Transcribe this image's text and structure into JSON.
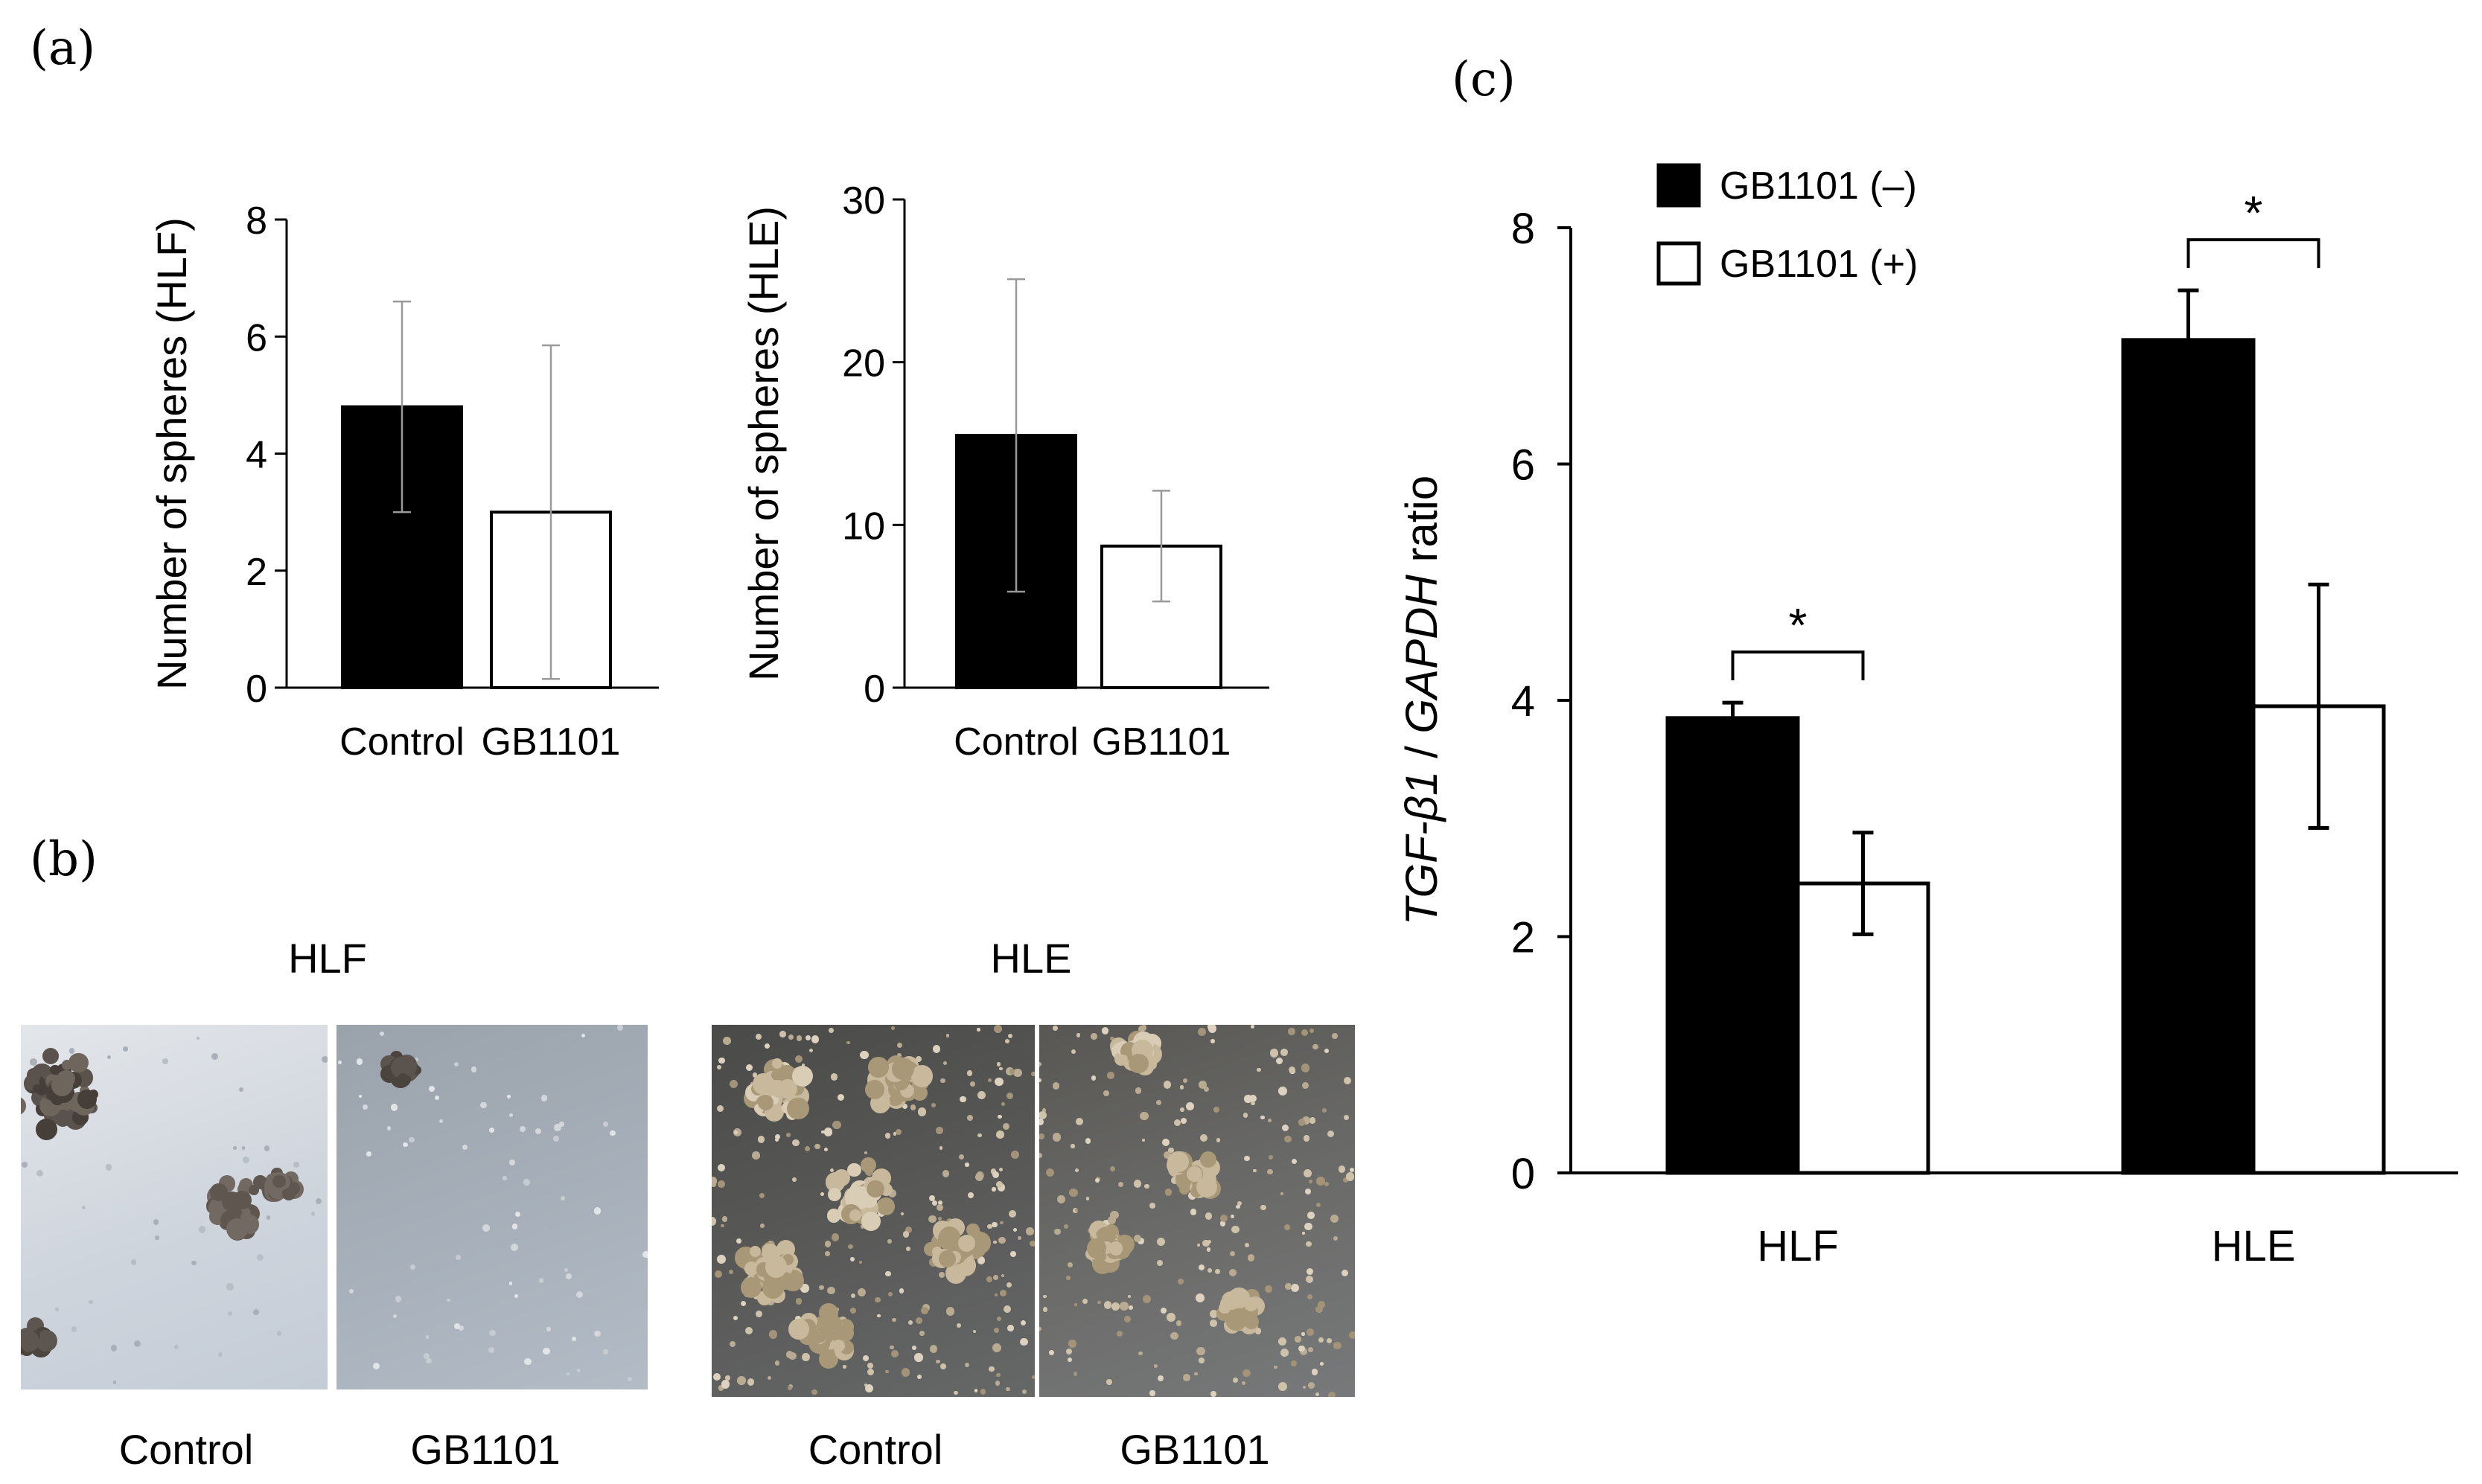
{
  "panels": {
    "a": "(a)",
    "b": "(b)",
    "c": "(c)"
  },
  "chart_data": [
    {
      "id": "a-left",
      "type": "bar",
      "categories": [
        "Control",
        "GB1101"
      ],
      "values": [
        4.8,
        3.0
      ],
      "errors": [
        1.8,
        2.85
      ],
      "fills": [
        "#000000",
        "#ffffff"
      ],
      "ylabel": "Number of spheres (HLF)",
      "ylim": [
        0,
        8
      ],
      "yticks": [
        0,
        2,
        4,
        6,
        8
      ],
      "grid": false
    },
    {
      "id": "a-right",
      "type": "bar",
      "categories": [
        "Control",
        "GB1101"
      ],
      "values": [
        15.5,
        8.7
      ],
      "errors": [
        9.6,
        3.4
      ],
      "fills": [
        "#000000",
        "#ffffff"
      ],
      "ylabel": "Number of spheres (HLE)",
      "ylim": [
        0,
        30
      ],
      "yticks": [
        0,
        10,
        20,
        30
      ],
      "grid": false
    },
    {
      "id": "c",
      "type": "bar",
      "categories": [
        "HLF",
        "HLE"
      ],
      "series": [
        {
          "name": "GB1101 (–)",
          "values": [
            3.85,
            7.05
          ],
          "errors": [
            0.13,
            0.42
          ],
          "fill": "#000000"
        },
        {
          "name": "GB1101 (+)",
          "values": [
            2.45,
            3.95
          ],
          "errors": [
            0.43,
            1.03
          ],
          "fill": "#ffffff"
        }
      ],
      "ylabel_parts": [
        "TGF-β1",
        " / ",
        "GAPDH",
        " ratio"
      ],
      "ylim": [
        0,
        8
      ],
      "yticks": [
        0,
        2,
        4,
        6,
        8
      ],
      "significance": [
        "*",
        "*"
      ],
      "legend_position": "top-left",
      "grid": false
    }
  ],
  "micrographs": {
    "groups": [
      "HLF",
      "HLE"
    ],
    "captions": [
      "Control",
      "GB1101",
      "Control",
      "GB1101"
    ]
  }
}
